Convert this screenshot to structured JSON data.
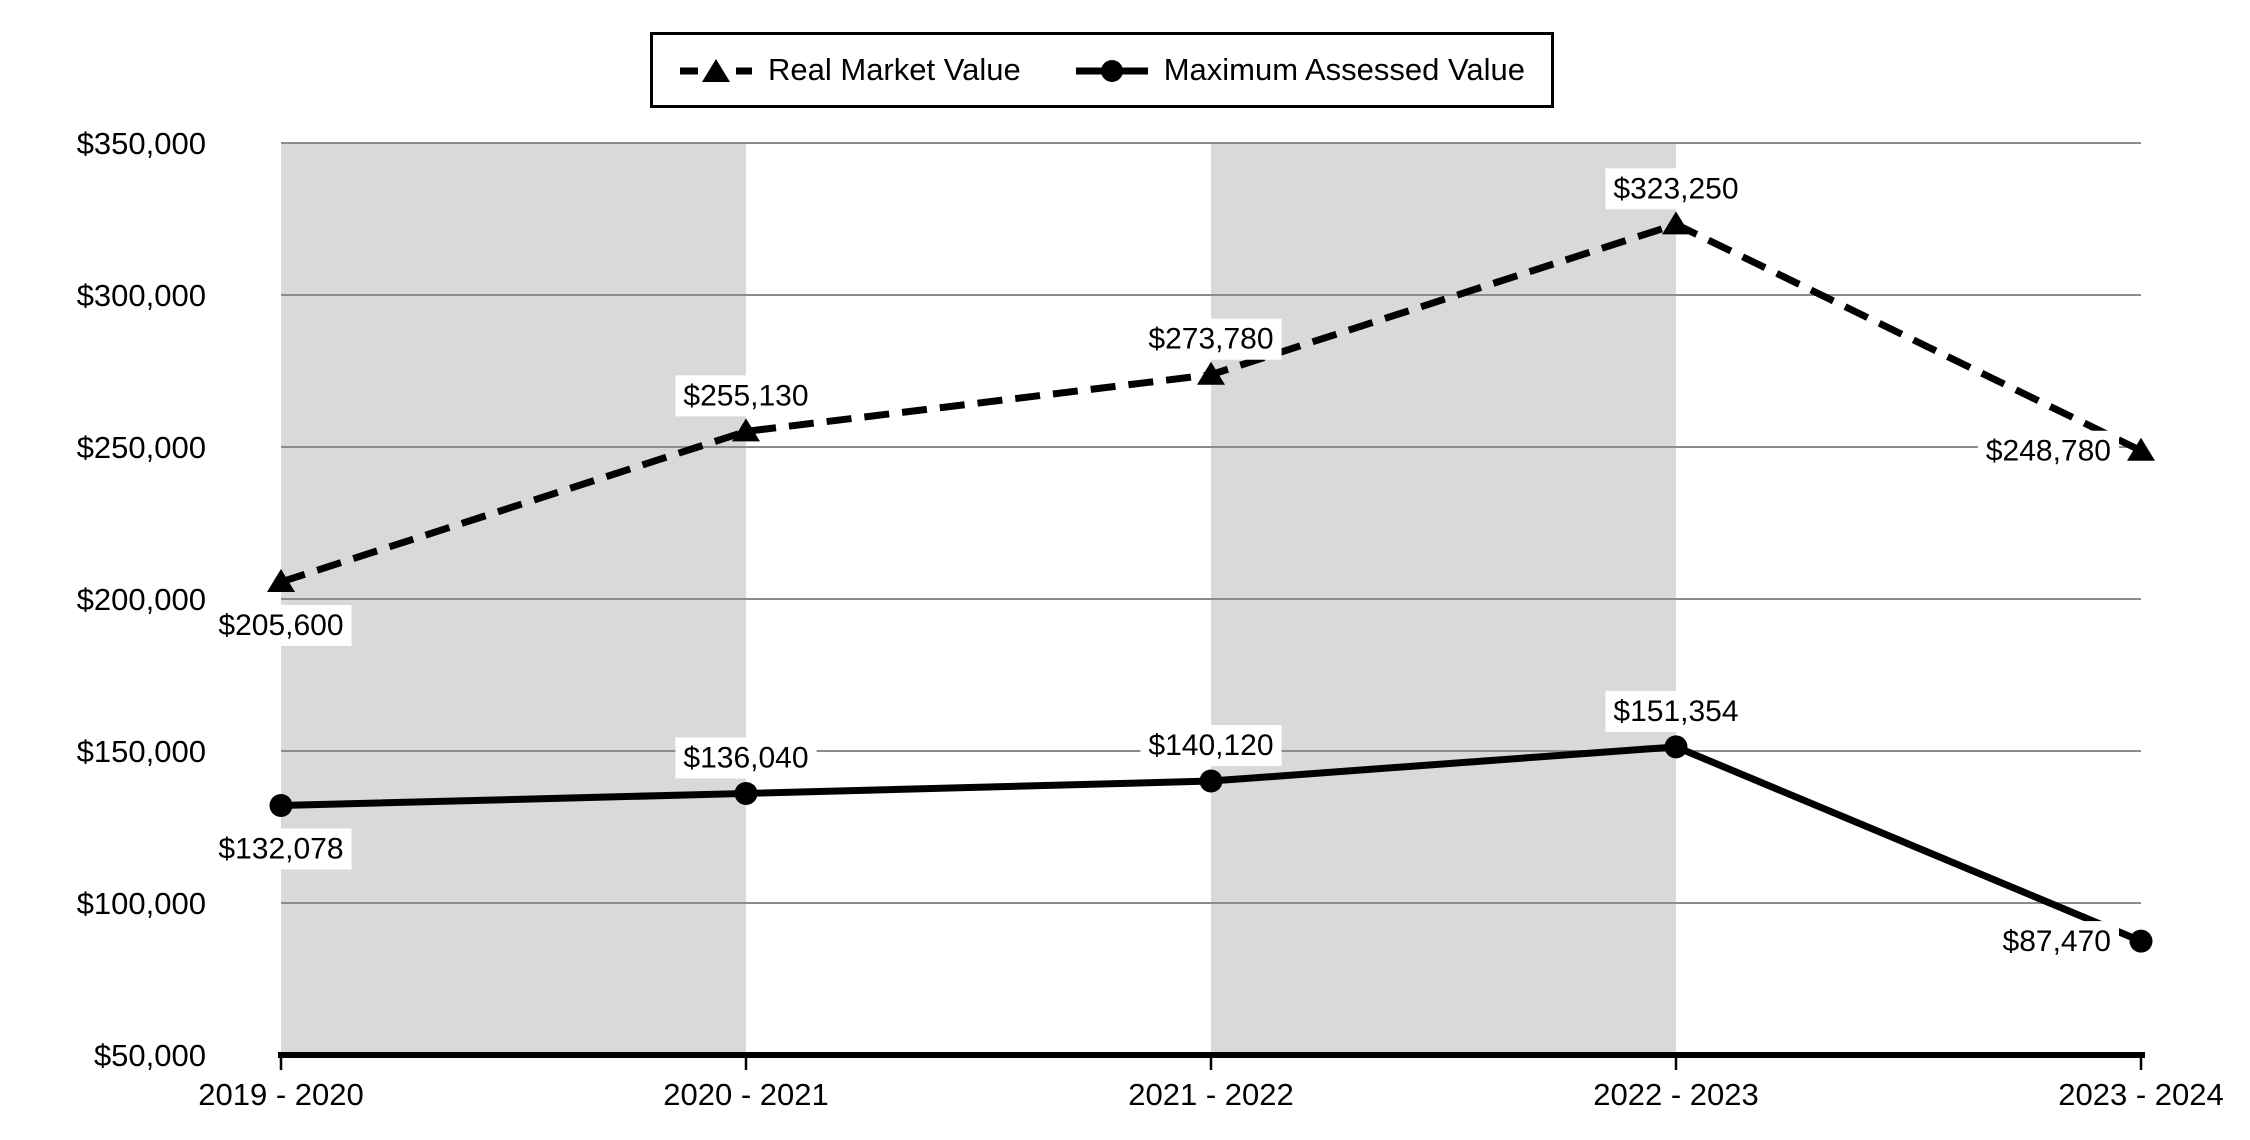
{
  "chart_data": {
    "type": "line",
    "title": "",
    "xlabel": "",
    "ylabel": "",
    "categories": [
      "2019 - 2020",
      "2020 - 2021",
      "2021 - 2022",
      "2022 - 2023",
      "2023 - 2024"
    ],
    "series": [
      {
        "name": "Real Market Value",
        "line_style": "dashed",
        "marker": "triangle",
        "values": [
          205600,
          255130,
          273780,
          323250,
          248780
        ],
        "labels": [
          "$205,600",
          "$255,130",
          "$273,780",
          "$323,250",
          "$248,780"
        ],
        "label_positions": [
          "below",
          "above",
          "above",
          "above",
          "left"
        ]
      },
      {
        "name": "Maximum Assessed Value",
        "line_style": "solid",
        "marker": "circle",
        "values": [
          132078,
          136040,
          140120,
          151354,
          87470
        ],
        "labels": [
          "$132,078",
          "$136,040",
          "$140,120",
          "$151,354",
          "$87,470"
        ],
        "label_positions": [
          "below",
          "above",
          "above",
          "above",
          "left"
        ]
      }
    ],
    "ylim": [
      50000,
      350000
    ],
    "y_ticks": [
      {
        "value": 350000,
        "label": "$350,000"
      },
      {
        "value": 300000,
        "label": "$300,000"
      },
      {
        "value": 250000,
        "label": "$250,000"
      },
      {
        "value": 200000,
        "label": "$200,000"
      },
      {
        "value": 150000,
        "label": "$150,000"
      },
      {
        "value": 100000,
        "label": "$100,000"
      },
      {
        "value": 50000,
        "label": "$50,000"
      }
    ],
    "shaded_bands": [
      [
        0,
        1
      ],
      [
        2,
        3
      ]
    ],
    "grid": "horizontal",
    "legend_position": "top",
    "colors": {
      "series": "#000000",
      "band": "#d9d9d9",
      "gridline": "#8c8c8c",
      "axis": "#000000",
      "label_bg": "#ffffff",
      "text": "#000000"
    }
  }
}
